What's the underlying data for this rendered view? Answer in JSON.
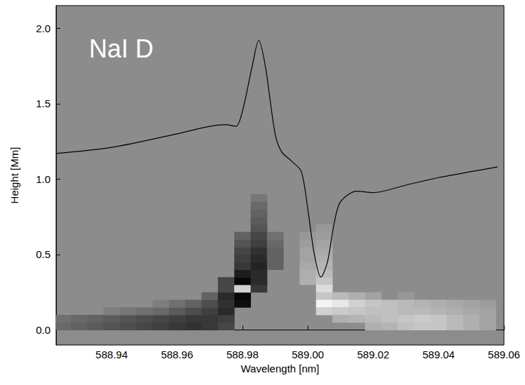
{
  "chart_data": {
    "type": "heatmap",
    "title": "NaI D",
    "x_label": "Wavelength [nm]",
    "y_label": "Height [Mm]",
    "xlim": [
      588.923,
      589.06
    ],
    "ylim": [
      -0.1,
      2.15
    ],
    "xticks": [
      588.94,
      588.96,
      588.98,
      {
        "value": 589,
        "label": "589.00"
      },
      589.02,
      589.04,
      589.06
    ],
    "yticks": [
      {
        "value": 0,
        "label": "0.0"
      },
      0.5,
      {
        "value": 1,
        "label": "1.0"
      },
      1.5,
      {
        "value": 2,
        "label": "2.0"
      }
    ],
    "grid": false,
    "color": "#000000",
    "x": [
      588.923,
      588.94,
      588.96,
      588.97,
      588.975,
      588.978,
      588.98,
      588.983,
      588.985,
      588.987,
      588.99,
      588.992,
      588.995,
      588.998,
      589.0,
      589.002,
      589.004,
      589.006,
      589.008,
      589.01,
      589.015,
      589.02,
      589.03,
      589.04,
      589.05,
      589.058
    ],
    "values": [
      1.17,
      1.21,
      1.3,
      1.35,
      1.36,
      1.35,
      1.45,
      1.75,
      1.92,
      1.75,
      1.3,
      1.18,
      1.12,
      1.05,
      0.8,
      0.5,
      0.35,
      0.45,
      0.7,
      0.85,
      0.92,
      0.91,
      0.96,
      1.01,
      1.05,
      1.08
    ],
    "cell_size": [
      0.005,
      0.05
    ],
    "zlim": [
      -1,
      1
    ],
    "cells": [
      [
        588.925,
        0.025,
        -0.25
      ],
      [
        588.93,
        0.025,
        -0.3
      ],
      [
        588.935,
        0.025,
        -0.35
      ],
      [
        588.94,
        0.025,
        -0.4
      ],
      [
        588.945,
        0.025,
        -0.45
      ],
      [
        588.95,
        0.025,
        -0.5
      ],
      [
        588.955,
        0.025,
        -0.55
      ],
      [
        588.96,
        0.025,
        -0.6
      ],
      [
        588.965,
        0.025,
        -0.65
      ],
      [
        588.97,
        0.025,
        -0.6
      ],
      [
        588.975,
        0.025,
        -0.5
      ],
      [
        588.925,
        0.075,
        -0.2
      ],
      [
        588.93,
        0.075,
        -0.25
      ],
      [
        588.935,
        0.075,
        -0.3
      ],
      [
        588.94,
        0.075,
        -0.35
      ],
      [
        588.945,
        0.075,
        -0.4
      ],
      [
        588.95,
        0.075,
        -0.45
      ],
      [
        588.955,
        0.075,
        -0.5
      ],
      [
        588.96,
        0.075,
        -0.55
      ],
      [
        588.965,
        0.075,
        -0.6
      ],
      [
        588.97,
        0.075,
        -0.6
      ],
      [
        588.975,
        0.075,
        -0.55
      ],
      [
        588.94,
        0.125,
        -0.1
      ],
      [
        588.945,
        0.125,
        -0.15
      ],
      [
        588.95,
        0.125,
        -0.2
      ],
      [
        588.955,
        0.125,
        -0.25
      ],
      [
        588.96,
        0.125,
        -0.35
      ],
      [
        588.965,
        0.125,
        -0.45
      ],
      [
        588.97,
        0.125,
        -0.55
      ],
      [
        588.975,
        0.125,
        -0.7
      ],
      [
        588.955,
        0.175,
        -0.1
      ],
      [
        588.96,
        0.175,
        -0.2
      ],
      [
        588.965,
        0.175,
        -0.3
      ],
      [
        588.97,
        0.175,
        -0.45
      ],
      [
        588.975,
        0.175,
        -0.65
      ],
      [
        588.98,
        0.175,
        -0.9
      ],
      [
        588.97,
        0.225,
        -0.3
      ],
      [
        588.975,
        0.225,
        -0.7
      ],
      [
        588.98,
        0.225,
        -0.95
      ],
      [
        588.975,
        0.275,
        -0.5
      ],
      [
        588.98,
        0.275,
        0.6
      ],
      [
        588.985,
        0.275,
        -0.6
      ],
      [
        588.975,
        0.325,
        -0.5
      ],
      [
        588.98,
        0.325,
        -0.95
      ],
      [
        588.985,
        0.325,
        -0.7
      ],
      [
        588.98,
        0.375,
        -0.8
      ],
      [
        588.985,
        0.375,
        -0.7
      ],
      [
        588.98,
        0.425,
        -0.6
      ],
      [
        588.985,
        0.425,
        -0.75
      ],
      [
        588.99,
        0.425,
        -0.3
      ],
      [
        588.98,
        0.475,
        -0.55
      ],
      [
        588.985,
        0.475,
        -0.7
      ],
      [
        588.99,
        0.475,
        -0.3
      ],
      [
        588.98,
        0.525,
        -0.5
      ],
      [
        588.985,
        0.525,
        -0.65
      ],
      [
        588.99,
        0.525,
        -0.3
      ],
      [
        588.98,
        0.575,
        -0.4
      ],
      [
        588.985,
        0.575,
        -0.55
      ],
      [
        588.99,
        0.575,
        -0.25
      ],
      [
        588.98,
        0.625,
        -0.3
      ],
      [
        588.985,
        0.625,
        -0.5
      ],
      [
        588.99,
        0.625,
        -0.2
      ],
      [
        588.985,
        0.675,
        -0.4
      ],
      [
        588.985,
        0.725,
        -0.35
      ],
      [
        588.985,
        0.775,
        -0.3
      ],
      [
        588.985,
        0.825,
        -0.25
      ],
      [
        588.985,
        0.875,
        -0.15
      ],
      [
        589.0,
        0.325,
        0.3
      ],
      [
        589.005,
        0.325,
        0.5
      ],
      [
        589.0,
        0.375,
        0.3
      ],
      [
        589.005,
        0.375,
        0.4
      ],
      [
        589.0,
        0.425,
        0.25
      ],
      [
        589.005,
        0.425,
        0.35
      ],
      [
        589.0,
        0.475,
        0.2
      ],
      [
        589.005,
        0.475,
        0.3
      ],
      [
        589.0,
        0.525,
        0.2
      ],
      [
        589.005,
        0.525,
        0.25
      ],
      [
        589.0,
        0.575,
        0.15
      ],
      [
        589.005,
        0.575,
        0.2
      ],
      [
        589.0,
        0.625,
        0.1
      ],
      [
        589.005,
        0.625,
        0.15
      ],
      [
        589.005,
        0.675,
        0.1
      ],
      [
        589.005,
        0.275,
        0.7
      ],
      [
        589.005,
        0.225,
        0.5
      ],
      [
        589.01,
        0.225,
        0.4
      ],
      [
        589.015,
        0.225,
        0.3
      ],
      [
        589.02,
        0.225,
        0.2
      ],
      [
        589.03,
        0.225,
        0.1
      ],
      [
        589.005,
        0.175,
        0.9
      ],
      [
        589.01,
        0.175,
        0.8
      ],
      [
        589.015,
        0.175,
        0.6
      ],
      [
        589.02,
        0.175,
        0.5
      ],
      [
        589.025,
        0.175,
        0.45
      ],
      [
        589.03,
        0.175,
        0.4
      ],
      [
        589.035,
        0.175,
        0.35
      ],
      [
        589.04,
        0.175,
        0.3
      ],
      [
        589.045,
        0.175,
        0.25
      ],
      [
        589.05,
        0.175,
        0.2
      ],
      [
        589.055,
        0.175,
        0.15
      ],
      [
        589.005,
        0.125,
        0.6
      ],
      [
        589.01,
        0.125,
        0.55
      ],
      [
        589.015,
        0.125,
        0.5
      ],
      [
        589.02,
        0.125,
        0.45
      ],
      [
        589.025,
        0.125,
        0.45
      ],
      [
        589.03,
        0.125,
        0.4
      ],
      [
        589.035,
        0.125,
        0.4
      ],
      [
        589.04,
        0.125,
        0.35
      ],
      [
        589.045,
        0.125,
        0.3
      ],
      [
        589.05,
        0.125,
        0.25
      ],
      [
        589.055,
        0.125,
        0.2
      ],
      [
        589.01,
        0.075,
        0.3
      ],
      [
        589.015,
        0.075,
        0.35
      ],
      [
        589.02,
        0.075,
        0.4
      ],
      [
        589.025,
        0.075,
        0.45
      ],
      [
        589.03,
        0.075,
        0.5
      ],
      [
        589.035,
        0.075,
        0.55
      ],
      [
        589.04,
        0.075,
        0.5
      ],
      [
        589.045,
        0.075,
        0.4
      ],
      [
        589.05,
        0.075,
        0.3
      ],
      [
        589.055,
        0.075,
        0.2
      ],
      [
        589.02,
        0.025,
        0.3
      ],
      [
        589.025,
        0.025,
        0.35
      ],
      [
        589.03,
        0.025,
        0.45
      ],
      [
        589.035,
        0.025,
        0.5
      ],
      [
        589.04,
        0.025,
        0.5
      ],
      [
        589.045,
        0.025,
        0.4
      ],
      [
        589.05,
        0.025,
        0.3
      ],
      [
        589.055,
        0.025,
        0.2
      ]
    ]
  }
}
